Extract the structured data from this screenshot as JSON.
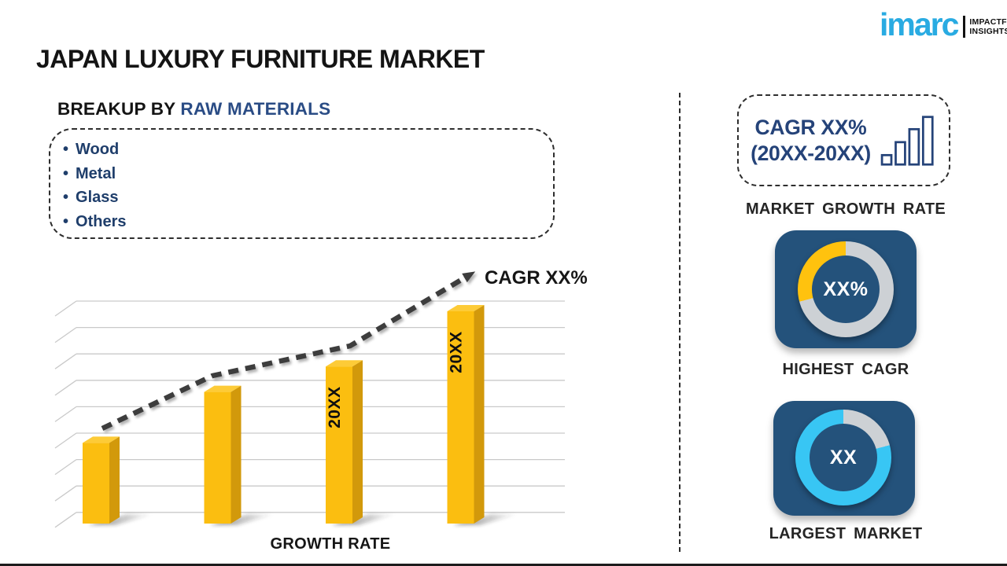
{
  "header": {
    "title": "JAPAN LUXURY FURNITURE MARKET",
    "logo": {
      "wordmark": "imarc",
      "tagline_line1": "IMPACTFUL",
      "tagline_line2": "INSIGHTS",
      "brand_color": "#29ABE2"
    }
  },
  "breakup": {
    "heading_prefix": "BREAKUP BY ",
    "heading_highlight": "RAW MATERIALS",
    "items": [
      "Wood",
      "Metal",
      "Glass",
      "Others"
    ]
  },
  "chart_data": {
    "type": "bar",
    "title": "",
    "xlabel": "GROWTH RATE",
    "ylabel": "",
    "categories": [
      "",
      "",
      "20XX",
      "20XX"
    ],
    "values": [
      38,
      62,
      74,
      100
    ],
    "value_note": "relative bar heights in % of tallest bar; placeholder infographic with no numeric axis",
    "trend_label": "CAGR XX%",
    "trend_shape": "dashed rising arrow over bars",
    "gridlines": 9,
    "legend": "none",
    "grid_color": "#C9C9C9",
    "bar_color": "#FBBE10",
    "bar_top_color": "#FDCB37",
    "bar_side_color": "#D2990B",
    "trend_color": "#3D3D3D"
  },
  "right_panel": {
    "card_bg": "#24527B",
    "growth_card": {
      "line1": "CAGR XX%",
      "line2": "(20XX-20XX)",
      "caption": "MARKET GROWTH RATE"
    },
    "highest_cagr": {
      "value": "XX%",
      "caption": "HIGHEST CAGR",
      "ring": {
        "track": "#CDD1D5",
        "segment": "#FFC20E",
        "segment_deg": 105
      }
    },
    "largest_market": {
      "value": "XX",
      "caption": "LARGEST MARKET",
      "ring": {
        "track": "#CDD1D5",
        "segment": "#38C6F4",
        "segment_deg": 285
      }
    }
  }
}
